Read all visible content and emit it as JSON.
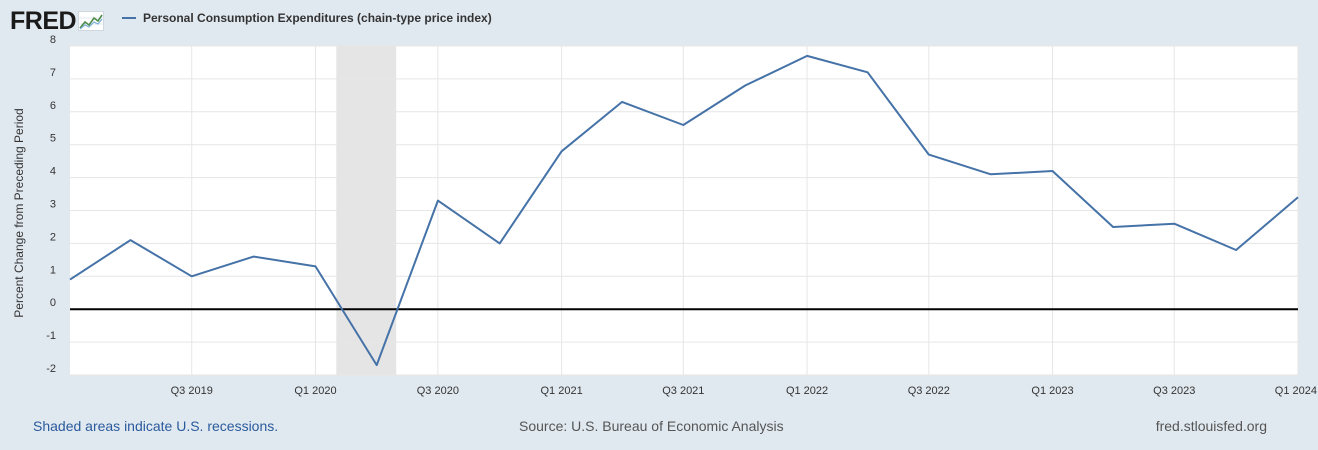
{
  "header": {
    "logo_text": "FRED",
    "logo_icon": "trend-line-icon"
  },
  "chart_data": {
    "type": "line",
    "series": [
      {
        "name": "Personal Consumption Expenditures (chain-type price index)",
        "color": "#4572a7",
        "x": [
          "Q1 2019",
          "Q2 2019",
          "Q3 2019",
          "Q4 2019",
          "Q1 2020",
          "Q2 2020",
          "Q3 2020",
          "Q4 2020",
          "Q1 2021",
          "Q2 2021",
          "Q3 2021",
          "Q4 2021",
          "Q1 2022",
          "Q2 2022",
          "Q3 2022",
          "Q4 2022",
          "Q1 2023",
          "Q2 2023",
          "Q3 2023",
          "Q4 2023",
          "Q1 2024"
        ],
        "values": [
          0.9,
          2.1,
          1.0,
          1.6,
          1.3,
          -1.7,
          3.3,
          2.0,
          4.8,
          6.3,
          5.6,
          6.8,
          7.7,
          7.2,
          4.7,
          4.1,
          4.2,
          2.5,
          2.6,
          1.8,
          3.4
        ]
      }
    ],
    "x_tick_labels": [
      "Q3 2019",
      "Q1 2020",
      "Q3 2020",
      "Q1 2021",
      "Q3 2021",
      "Q1 2022",
      "Q3 2022",
      "Q1 2023",
      "Q3 2023",
      "Q1 2024"
    ],
    "y_tick_labels": [
      "8",
      "7",
      "6",
      "5",
      "4",
      "3",
      "2",
      "1",
      "0",
      "-1",
      "-2"
    ],
    "ylabel": "Percent Change from Preceding Period",
    "xlabel": "",
    "ylim": [
      -2,
      8
    ],
    "xlim": [
      "2019-01-01",
      "2024-01-01"
    ],
    "recession": {
      "start": "2020-02-01",
      "end": "2020-04-30",
      "color": "#e5e5e5"
    },
    "zero_line_color": "#000000",
    "grid": true,
    "legend_position": "top-left"
  },
  "footer": {
    "note": "Shaded areas indicate U.S. recessions.",
    "source": "Source: U.S. Bureau of Economic Analysis",
    "site": "fred.stlouisfed.org"
  }
}
